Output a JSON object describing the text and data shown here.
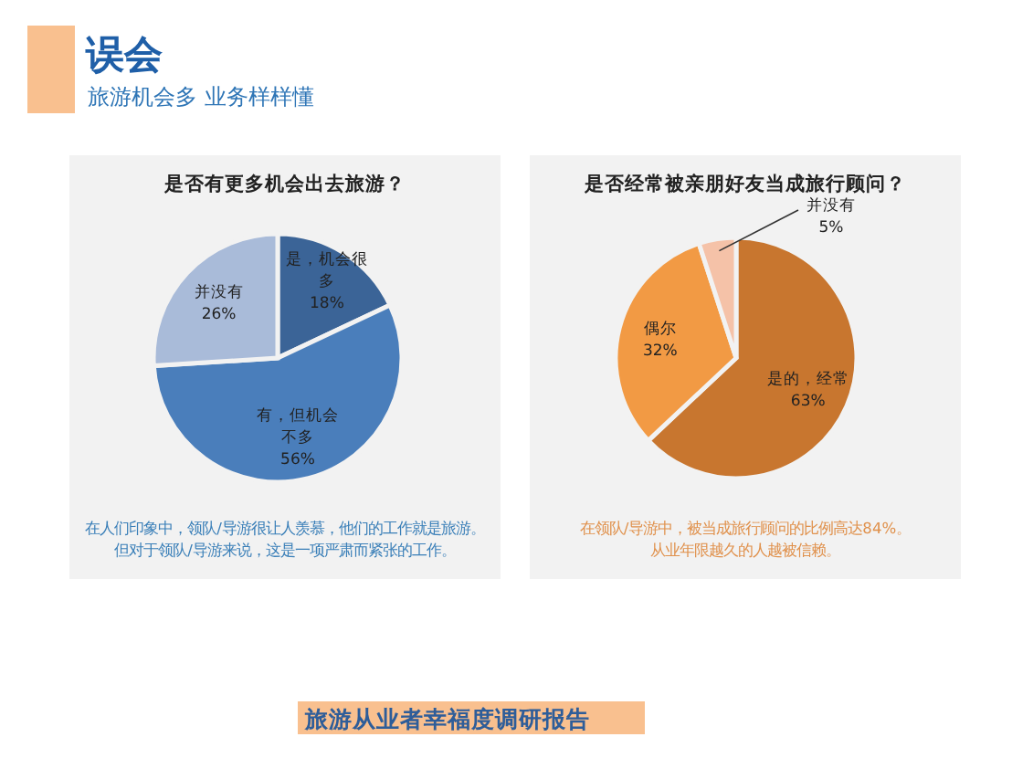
{
  "chart_data": [
    {
      "type": "pie",
      "title": "是否有更多机会出去旅游？",
      "categories": [
        "是，机会很多",
        "有，但机会不多",
        "并没有"
      ],
      "values": [
        18,
        56,
        26
      ],
      "colors": [
        "#3b6497",
        "#4a7ebb",
        "#a9bbd9"
      ],
      "value_labels": [
        "18%",
        "56%",
        "26%"
      ],
      "annotations": [
        "误会",
        "旅游机会多 业务样样懂",
        "在人们印象中，领队/导游很让人羡慕，他们的工作就是旅游。",
        "但对于领队/导游来说，这是一项严肃而紧张的工作。"
      ]
    },
    {
      "type": "pie",
      "title": "是否经常被亲朋好友当成旅行顾问？",
      "categories": [
        "是的，经常",
        "偶尔",
        "并没有"
      ],
      "values": [
        63,
        32,
        5
      ],
      "colors": [
        "#c8762f",
        "#f29a44",
        "#f5c2a8"
      ],
      "value_labels": [
        "63%",
        "32%",
        "5%"
      ],
      "annotations": [
        "在领队/导游中，被当成旅行顾问的比例高达84%。",
        "从业年限越久的人越被信赖。",
        "旅游从业者幸福度调研报告"
      ]
    }
  ]
}
